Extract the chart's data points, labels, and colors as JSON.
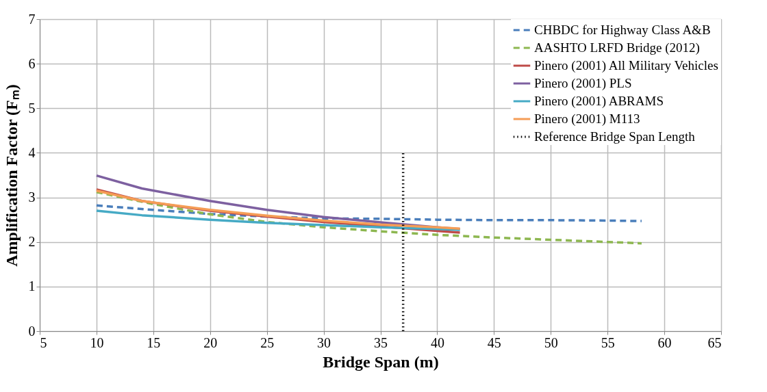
{
  "chart_data": {
    "type": "line",
    "xlabel": "Bridge Span (m)",
    "ylabel": "Amplification  Factor (Fₘ)",
    "xlim": [
      5,
      65
    ],
    "xticks": [
      5,
      10,
      15,
      20,
      25,
      30,
      35,
      40,
      45,
      50,
      55,
      60,
      65
    ],
    "ylim": [
      0,
      7
    ],
    "yticks": [
      0,
      1,
      2,
      3,
      4,
      5,
      6,
      7
    ],
    "grid": true,
    "legend": "top right",
    "series": [
      {
        "name": "CHBDC for Highway Class A&B",
        "color": "#4a7ebb",
        "line_style": "dashed",
        "x": [
          10,
          15,
          20,
          25,
          30,
          35,
          40,
          45,
          50,
          55,
          58
        ],
        "values": [
          2.82,
          2.72,
          2.63,
          2.57,
          2.53,
          2.52,
          2.5,
          2.49,
          2.49,
          2.48,
          2.47
        ]
      },
      {
        "name": "AASHTO LRFD Bridge (2012)",
        "color": "#8db750",
        "line_style": "dashed",
        "x": [
          10,
          15,
          20,
          25,
          30,
          35,
          40,
          45,
          50,
          55,
          58
        ],
        "values": [
          3.12,
          2.85,
          2.62,
          2.45,
          2.33,
          2.24,
          2.16,
          2.1,
          2.05,
          2.0,
          1.97
        ]
      },
      {
        "name": "Pinero (2001) All Military Vehicles",
        "color": "#be4b48",
        "line_style": "solid",
        "x": [
          10,
          14,
          20,
          25,
          30,
          35,
          40,
          42
        ],
        "values": [
          3.18,
          2.92,
          2.7,
          2.57,
          2.45,
          2.35,
          2.25,
          2.21
        ]
      },
      {
        "name": "Pinero (2001) PLS",
        "color": "#7d60a0",
        "line_style": "solid",
        "x": [
          10,
          14,
          20,
          25,
          30,
          35,
          40,
          42
        ],
        "values": [
          3.49,
          3.2,
          2.92,
          2.72,
          2.56,
          2.44,
          2.33,
          2.29
        ]
      },
      {
        "name": "Pinero (2001) ABRAMS",
        "color": "#46aac5",
        "line_style": "solid",
        "x": [
          10,
          14,
          20,
          25,
          30,
          35,
          40,
          42
        ],
        "values": [
          2.7,
          2.6,
          2.5,
          2.43,
          2.38,
          2.33,
          2.29,
          2.27
        ]
      },
      {
        "name": "Pinero (2001) M113",
        "color": "#f59d56",
        "line_style": "solid",
        "x": [
          10,
          14,
          20,
          25,
          30,
          35,
          40,
          42
        ],
        "values": [
          3.15,
          2.92,
          2.72,
          2.59,
          2.48,
          2.39,
          2.33,
          2.3
        ]
      },
      {
        "name": "Reference Bridge Span Length",
        "color": "#000000",
        "line_style": "dotted",
        "x": [
          37,
          37
        ],
        "values": [
          0,
          4
        ]
      }
    ]
  }
}
